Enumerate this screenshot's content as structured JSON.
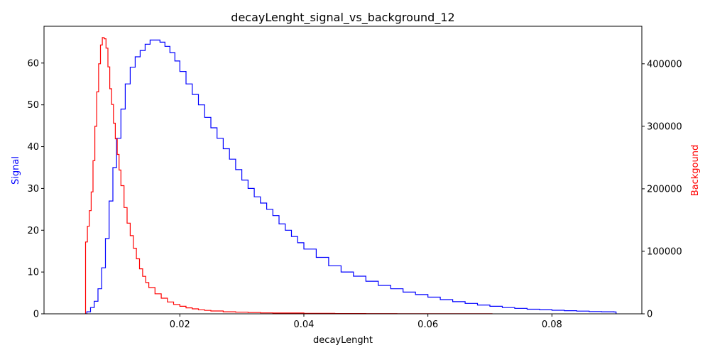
{
  "chart_data": {
    "type": "line",
    "title": "decayLenght_signal_vs_background_12",
    "xlabel": "decayLenght",
    "ylabel_left": "Signal",
    "ylabel_right": "Backgound",
    "xlim": [
      -0.0019,
      0.0945
    ],
    "ylim_left": [
      0,
      68.8
    ],
    "ylim_right": [
      0,
      460000
    ],
    "x_ticks": [
      0.02,
      0.04,
      0.06,
      0.08
    ],
    "x_tick_labels": [
      "0.02",
      "0.04",
      "0.06",
      "0.08"
    ],
    "y_left_ticks": [
      0,
      10,
      20,
      30,
      40,
      50,
      60
    ],
    "y_left_tick_labels": [
      "0",
      "10",
      "20",
      "30",
      "40",
      "50",
      "60"
    ],
    "y_right_ticks": [
      0,
      100000,
      200000,
      300000,
      400000
    ],
    "y_right_tick_labels": [
      "0",
      "100000",
      "200000",
      "300000",
      "400000"
    ],
    "grid": false,
    "series": [
      {
        "name": "Signal",
        "axis": "left",
        "color": "#0000ff",
        "step": true,
        "x": [
          0.005,
          0.0056,
          0.0062,
          0.0068,
          0.0074,
          0.008,
          0.0086,
          0.0092,
          0.0098,
          0.0105,
          0.0112,
          0.012,
          0.0128,
          0.0136,
          0.0144,
          0.0152,
          0.016,
          0.0168,
          0.0176,
          0.0184,
          0.0192,
          0.02,
          0.021,
          0.022,
          0.023,
          0.024,
          0.025,
          0.026,
          0.027,
          0.028,
          0.029,
          0.03,
          0.031,
          0.032,
          0.033,
          0.034,
          0.035,
          0.036,
          0.037,
          0.038,
          0.039,
          0.04,
          0.042,
          0.044,
          0.046,
          0.048,
          0.05,
          0.052,
          0.054,
          0.056,
          0.058,
          0.06,
          0.062,
          0.064,
          0.066,
          0.068,
          0.07,
          0.072,
          0.074,
          0.076,
          0.078,
          0.08,
          0.082,
          0.084,
          0.086,
          0.088,
          0.09
        ],
        "y": [
          0.5,
          1.5,
          3,
          6,
          11,
          18,
          27,
          35,
          42,
          49,
          55,
          59,
          61.5,
          63,
          64.5,
          65.5,
          65.5,
          65,
          64,
          62.5,
          60.5,
          58,
          55,
          52.5,
          50,
          47,
          44.5,
          42,
          39.5,
          37,
          34.5,
          32,
          30,
          28,
          26.5,
          25,
          23.5,
          21.5,
          20,
          18.5,
          17,
          15.5,
          13.5,
          11.5,
          10,
          9,
          7.8,
          6.8,
          6,
          5.2,
          4.6,
          4,
          3.4,
          2.9,
          2.5,
          2.1,
          1.8,
          1.5,
          1.3,
          1.1,
          1.0,
          0.85,
          0.75,
          0.65,
          0.55,
          0.5,
          0.45
        ]
      },
      {
        "name": "Backgound",
        "axis": "right",
        "color": "#ff0000",
        "step": true,
        "x": [
          0.0048,
          0.0051,
          0.0054,
          0.0057,
          0.006,
          0.0063,
          0.0066,
          0.0069,
          0.0072,
          0.0075,
          0.0078,
          0.0081,
          0.0084,
          0.0087,
          0.009,
          0.0093,
          0.0096,
          0.0099,
          0.0102,
          0.0105,
          0.011,
          0.0115,
          0.012,
          0.0125,
          0.013,
          0.0135,
          0.014,
          0.0145,
          0.015,
          0.016,
          0.017,
          0.018,
          0.019,
          0.02,
          0.021,
          0.022,
          0.023,
          0.024,
          0.025,
          0.027,
          0.029,
          0.031,
          0.033,
          0.035,
          0.04,
          0.045,
          0.05,
          0.055,
          0.06,
          0.065,
          0.07
        ],
        "y": [
          115000,
          140000,
          165000,
          195000,
          245000,
          300000,
          355000,
          400000,
          430000,
          442000,
          440000,
          425000,
          395000,
          360000,
          335000,
          305000,
          280000,
          255000,
          230000,
          205000,
          170000,
          145000,
          125000,
          105000,
          88000,
          72000,
          60000,
          50000,
          42000,
          32000,
          25000,
          19000,
          15000,
          12000,
          9500,
          8000,
          6500,
          5500,
          4500,
          3300,
          2600,
          2000,
          1500,
          1200,
          800,
          500,
          350,
          250,
          180,
          120,
          80
        ]
      }
    ]
  }
}
